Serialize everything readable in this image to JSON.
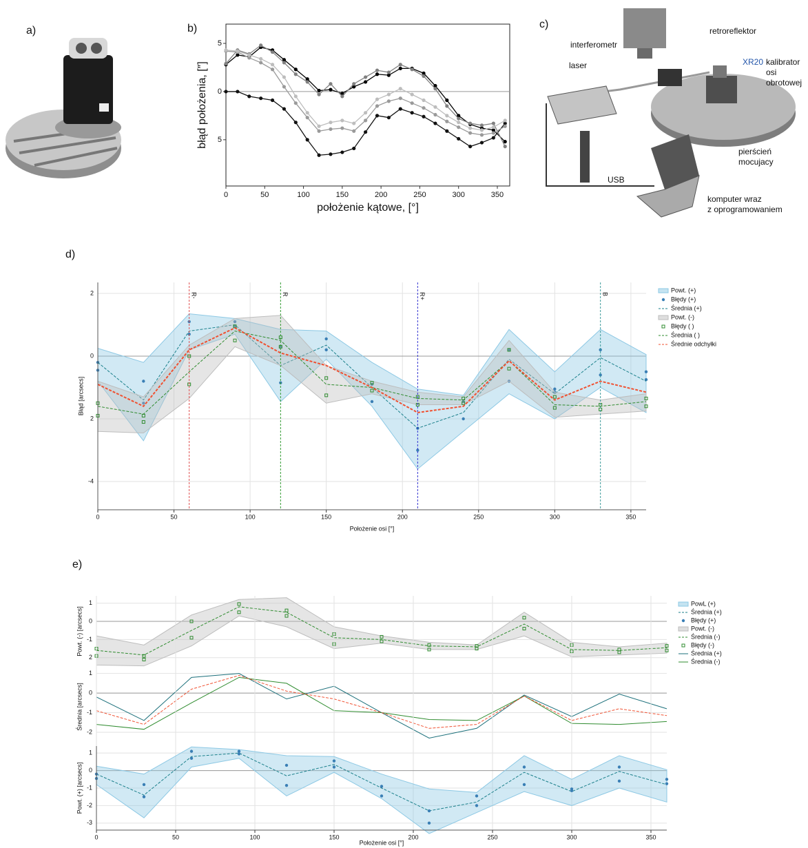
{
  "panel_labels": [
    "a)",
    "b)",
    "c)",
    "d)",
    "e)"
  ],
  "diagram": {
    "labels": [
      "interferometr",
      "retroreflektor",
      "laser",
      "XR20",
      "kalibrator",
      "osi",
      "obrotowej",
      "USB",
      "pierścień",
      "mocujacy",
      "komputer wraz",
      "z oprogramowaniem"
    ]
  },
  "chart_data": [
    {
      "type": "line",
      "xlabel": "położenie kątowe, [°]",
      "ylabel": "błąd położenia, [″]",
      "xlim": [
        0,
        366
      ],
      "xticks": [
        0,
        50,
        100,
        150,
        200,
        250,
        300,
        350
      ],
      "ylim": [
        -9.8,
        7
      ],
      "yticks": [
        5,
        0,
        {
          "value": -5,
          "label": "5"
        }
      ],
      "zero_line": true,
      "x": [
        0,
        15,
        30,
        45,
        60,
        75,
        90,
        105,
        120,
        135,
        150,
        165,
        180,
        195,
        210,
        225,
        240,
        255,
        270,
        285,
        300,
        315,
        330,
        345,
        360
      ],
      "series": [
        {
          "kind": "line",
          "marker": "circle",
          "color": "#111111",
          "values": [
            0,
            0,
            -0.5,
            -0.7,
            -0.9,
            -1.8,
            -3.2,
            -5,
            -6.6,
            -6.5,
            -6.3,
            -5.9,
            -4.2,
            -2.5,
            -2.7,
            -1.8,
            -2.2,
            -2.6,
            -3.3,
            -4.1,
            -4.9,
            -5.7,
            -5.3,
            -4.8,
            -3.3
          ]
        },
        {
          "kind": "line",
          "marker": "circle",
          "color": "#000000",
          "values": [
            2.8,
            3.8,
            3.6,
            4.6,
            4.3,
            3.3,
            2.3,
            1.3,
            0.1,
            0.2,
            -0.2,
            0.5,
            1.0,
            1.8,
            1.7,
            2.4,
            2.4,
            1.9,
            0.6,
            -0.9,
            -2.5,
            -3.4,
            -3.8,
            -4.0,
            -5.2
          ]
        },
        {
          "kind": "line",
          "marker": "circle",
          "color": "#808080",
          "values": [
            2.9,
            4.3,
            3.9,
            4.8,
            4.1,
            3.0,
            1.8,
            1.0,
            -0.3,
            0.8,
            -0.5,
            0.8,
            1.5,
            2.2,
            2.0,
            2.8,
            2.3,
            1.6,
            0.3,
            -1.5,
            -2.8,
            -3.3,
            -3.5,
            -3.3,
            -5.7
          ]
        },
        {
          "kind": "line",
          "marker": "circle",
          "color": "#9a9a9a",
          "values": [
            4.2,
            4.1,
            3.5,
            3.0,
            2.3,
            0.5,
            -1.2,
            -2.7,
            -4.1,
            -3.9,
            -3.8,
            -4.1,
            -3.0,
            -1.5,
            -1.0,
            -0.7,
            -1.2,
            -1.7,
            -2.4,
            -3.1,
            -3.7,
            -4.3,
            -4.5,
            -4.3,
            -3.6
          ]
        },
        {
          "kind": "line",
          "marker": "circle",
          "color": "#bdbdbd",
          "values": [
            4.3,
            4.2,
            3.8,
            3.4,
            2.8,
            1.5,
            -0.5,
            -2.2,
            -3.6,
            -3.2,
            -3.0,
            -3.3,
            -2.2,
            -0.8,
            -0.3,
            0.3,
            -0.3,
            -0.9,
            -1.6,
            -2.5,
            -3.2,
            -3.8,
            -4.0,
            -3.7,
            -3.0
          ]
        }
      ]
    },
    {
      "type": "line",
      "xlabel": "Położenie osi [°]",
      "ylabel": "Błąd [arcsecs]",
      "grid": true,
      "legend": "outside-right",
      "xlim": [
        0,
        360
      ],
      "xticks": [
        0,
        50,
        100,
        150,
        200,
        250,
        300,
        350
      ],
      "ylim": [
        -4.9,
        2.35
      ],
      "yticks": [
        2,
        0,
        {
          "value": -2,
          "label": "2"
        },
        -4
      ],
      "zero_line": true,
      "x": [
        0,
        30,
        60,
        90,
        120,
        150,
        180,
        210,
        240,
        270,
        300,
        330,
        360
      ],
      "vlines": [
        {
          "x": 60,
          "label": "R-",
          "color": "#e05050"
        },
        {
          "x": 120,
          "label": "R",
          "color": "#2f9a2f"
        },
        {
          "x": 210,
          "label": "R+",
          "color": "#3030d0"
        },
        {
          "x": 330,
          "label": "B",
          "color": "#3a9a9a"
        }
      ],
      "series": [
        {
          "name": "Powt. (+)",
          "kind": "band",
          "color": "#8cc8e4",
          "lower": [
            -0.8,
            -2.7,
            0.2,
            0.7,
            -1.45,
            -0.1,
            -1.6,
            -3.6,
            -2.4,
            -1.2,
            -2.0,
            -1.0,
            -1.8
          ],
          "upper": [
            0.25,
            -0.2,
            1.35,
            1.2,
            0.85,
            0.8,
            -0.2,
            -1.05,
            -1.25,
            0.85,
            -0.5,
            0.85,
            0.05
          ]
        },
        {
          "name": "Błędy (+)",
          "kind": "scatter",
          "color": "#3a7fb5",
          "x": [
            0,
            0,
            30,
            30,
            60,
            60,
            90,
            90,
            120,
            120,
            150,
            150,
            180,
            180,
            210,
            210,
            240,
            240,
            270,
            270,
            300,
            300,
            330,
            330,
            360,
            360
          ],
          "values": [
            -0.2,
            -0.45,
            -0.8,
            -1.5,
            1.1,
            0.7,
            1.1,
            0.95,
            0.3,
            -0.85,
            0.55,
            0.2,
            -0.9,
            -1.45,
            -2.3,
            -3.0,
            -1.45,
            -2.0,
            0.2,
            -0.8,
            -1.05,
            -1.15,
            0.2,
            -0.6,
            -0.5,
            -0.75
          ]
        },
        {
          "name": "Średnia (+)",
          "kind": "line",
          "dash": true,
          "color": "#1a7f8a",
          "values": [
            -0.2,
            -1.4,
            0.8,
            1.0,
            -0.3,
            0.35,
            -1.0,
            -2.3,
            -1.8,
            -0.1,
            -1.2,
            -0.05,
            -0.8
          ]
        },
        {
          "name": "Powt. (-)",
          "kind": "band",
          "color": "#bdbdbd",
          "lower": [
            -2.4,
            -2.45,
            -1.35,
            0.3,
            -0.3,
            -1.5,
            -1.2,
            -1.55,
            -1.55,
            -0.8,
            -1.95,
            -1.85,
            -1.75
          ],
          "upper": [
            -0.8,
            -1.3,
            0.35,
            1.2,
            1.3,
            -0.3,
            -0.8,
            -1.15,
            -1.3,
            0.5,
            -1.15,
            -1.4,
            -1.2
          ]
        },
        {
          "name": "Błędy ( )",
          "kind": "scatter",
          "marker": "square",
          "color": "#2e8b2e",
          "x": [
            0,
            0,
            30,
            30,
            60,
            60,
            90,
            90,
            120,
            120,
            150,
            150,
            180,
            180,
            210,
            210,
            240,
            240,
            270,
            270,
            300,
            300,
            330,
            330,
            360,
            360
          ],
          "values": [
            -1.5,
            -1.9,
            -1.9,
            -2.1,
            0.0,
            -0.9,
            0.95,
            0.5,
            0.6,
            0.3,
            -0.7,
            -1.25,
            -0.85,
            -1.1,
            -1.3,
            -1.55,
            -1.35,
            -1.5,
            0.2,
            -0.4,
            -1.3,
            -1.65,
            -1.55,
            -1.7,
            -1.35,
            -1.6
          ]
        },
        {
          "name": "Średnia ( )",
          "kind": "line",
          "dash": true,
          "color": "#2e8b2e",
          "values": [
            -1.6,
            -1.85,
            -0.5,
            0.8,
            0.5,
            -0.9,
            -1.0,
            -1.35,
            -1.4,
            -0.15,
            -1.55,
            -1.6,
            -1.45
          ]
        },
        {
          "name": "Średnie odchyłki",
          "kind": "line",
          "dash": true,
          "width": 2,
          "color": "#f05030",
          "values": [
            -0.9,
            -1.6,
            0.2,
            0.9,
            0.1,
            -0.3,
            -1.0,
            -1.8,
            -1.6,
            -0.15,
            -1.4,
            -0.8,
            -1.15
          ]
        }
      ]
    },
    {
      "type": "line",
      "xlabel": "Położenie osi [°]",
      "grid": true,
      "legend": "outside-right",
      "xlim": [
        0,
        360
      ],
      "xticks": [
        0,
        50,
        100,
        150,
        200,
        250,
        300,
        350
      ],
      "x": [
        0,
        30,
        60,
        90,
        120,
        150,
        180,
        210,
        240,
        270,
        300,
        330,
        360
      ],
      "panels": [
        {
          "ylabel": "Powt. (-) [arcsecs]",
          "ylim": [
            -2.5,
            1.4
          ],
          "yticks": [
            1,
            0,
            -1,
            {
              "value": -2,
              "label": "2"
            }
          ]
        },
        {
          "ylabel": "Średnia [arcsecs]",
          "ylim": [
            -2.6,
            1.2
          ],
          "yticks": [
            1,
            0,
            -1,
            -2
          ]
        },
        {
          "ylabel": "Powt. (+) [arcsecs]",
          "ylim": [
            -3.4,
            1.4
          ],
          "yticks": [
            1,
            0,
            -1,
            -2,
            -3
          ]
        }
      ],
      "series": [
        {
          "name": "PowL (+)",
          "kind": "band",
          "panel": 2,
          "color": "#8cc8e4",
          "lower": [
            -0.8,
            -2.7,
            0.2,
            0.7,
            -1.45,
            -0.1,
            -1.6,
            -3.6,
            -2.4,
            -1.2,
            -2.0,
            -1.0,
            -1.8
          ],
          "upper": [
            0.25,
            -0.2,
            1.35,
            1.2,
            0.85,
            0.8,
            -0.2,
            -1.05,
            -1.25,
            0.85,
            -0.5,
            0.85,
            0.05
          ]
        },
        {
          "name": "Średnia (+)",
          "kind": "line",
          "dash": true,
          "panel": 2,
          "color": "#1a7f8a",
          "values": [
            -0.2,
            -1.4,
            0.8,
            1.0,
            -0.3,
            0.35,
            -1.0,
            -2.3,
            -1.8,
            -0.1,
            -1.2,
            -0.05,
            -0.8
          ]
        },
        {
          "name": "Błędy (+)",
          "kind": "scatter",
          "panel": 2,
          "color": "#3a7fb5",
          "x": [
            0,
            0,
            30,
            30,
            60,
            60,
            90,
            90,
            120,
            120,
            150,
            150,
            180,
            180,
            210,
            210,
            240,
            240,
            270,
            270,
            300,
            300,
            330,
            330,
            360,
            360
          ],
          "values": [
            -0.2,
            -0.45,
            -0.8,
            -1.5,
            1.1,
            0.7,
            1.1,
            0.95,
            0.3,
            -0.85,
            0.55,
            0.2,
            -0.9,
            -1.45,
            -2.3,
            -3.0,
            -1.45,
            -2.0,
            0.2,
            -0.8,
            -1.05,
            -1.15,
            0.2,
            -0.6,
            -0.5,
            -0.75
          ]
        },
        {
          "name": "Powt. (-)",
          "kind": "band",
          "panel": 0,
          "color": "#bdbdbd",
          "lower": [
            -2.4,
            -2.45,
            -1.35,
            0.3,
            -0.3,
            -1.5,
            -1.2,
            -1.55,
            -1.55,
            -0.8,
            -1.95,
            -1.85,
            -1.75
          ],
          "upper": [
            -0.8,
            -1.3,
            0.35,
            1.2,
            1.3,
            -0.3,
            -0.8,
            -1.15,
            -1.3,
            0.5,
            -1.15,
            -1.4,
            -1.2
          ]
        },
        {
          "name": "Średnia (-)",
          "kind": "line",
          "dash": true,
          "panel": 0,
          "color": "#2e8b2e",
          "values": [
            -1.6,
            -1.85,
            -0.5,
            0.8,
            0.5,
            -0.9,
            -1.0,
            -1.35,
            -1.4,
            -0.15,
            -1.55,
            -1.6,
            -1.45
          ]
        },
        {
          "name": "Błędy (-)",
          "kind": "scatter",
          "marker": "square",
          "panel": 0,
          "color": "#2e8b2e",
          "x": [
            0,
            0,
            30,
            30,
            60,
            60,
            90,
            90,
            120,
            120,
            150,
            150,
            180,
            180,
            210,
            210,
            240,
            240,
            270,
            270,
            300,
            300,
            330,
            330,
            360,
            360
          ],
          "values": [
            -1.5,
            -1.9,
            -1.9,
            -2.1,
            0.0,
            -0.9,
            0.95,
            0.5,
            0.6,
            0.3,
            -0.7,
            -1.25,
            -0.85,
            -1.1,
            -1.3,
            -1.55,
            -1.35,
            -1.5,
            0.2,
            -0.4,
            -1.3,
            -1.65,
            -1.55,
            -1.7,
            -1.35,
            -1.6
          ]
        },
        {
          "name": "Średnia (+)",
          "kind": "line",
          "panel": 1,
          "color": "#1a6f7a",
          "values": [
            -0.2,
            -1.4,
            0.8,
            1.0,
            -0.3,
            0.35,
            -1.0,
            -2.3,
            -1.8,
            -0.1,
            -1.2,
            -0.05,
            -0.8
          ]
        },
        {
          "name": "Średnia (-)",
          "kind": "line",
          "panel": 1,
          "color": "#2e8b2e",
          "values": [
            -1.6,
            -1.85,
            -0.5,
            0.8,
            0.5,
            -0.9,
            -1.0,
            -1.35,
            -1.4,
            -0.15,
            -1.55,
            -1.6,
            -1.45
          ]
        },
        {
          "kind": "line",
          "dash": true,
          "panel": 1,
          "color": "#f05030",
          "values": [
            -0.9,
            -1.6,
            0.2,
            0.9,
            0.1,
            -0.3,
            -1.0,
            -1.8,
            -1.6,
            -0.15,
            -1.4,
            -0.8,
            -1.15
          ]
        }
      ]
    }
  ]
}
